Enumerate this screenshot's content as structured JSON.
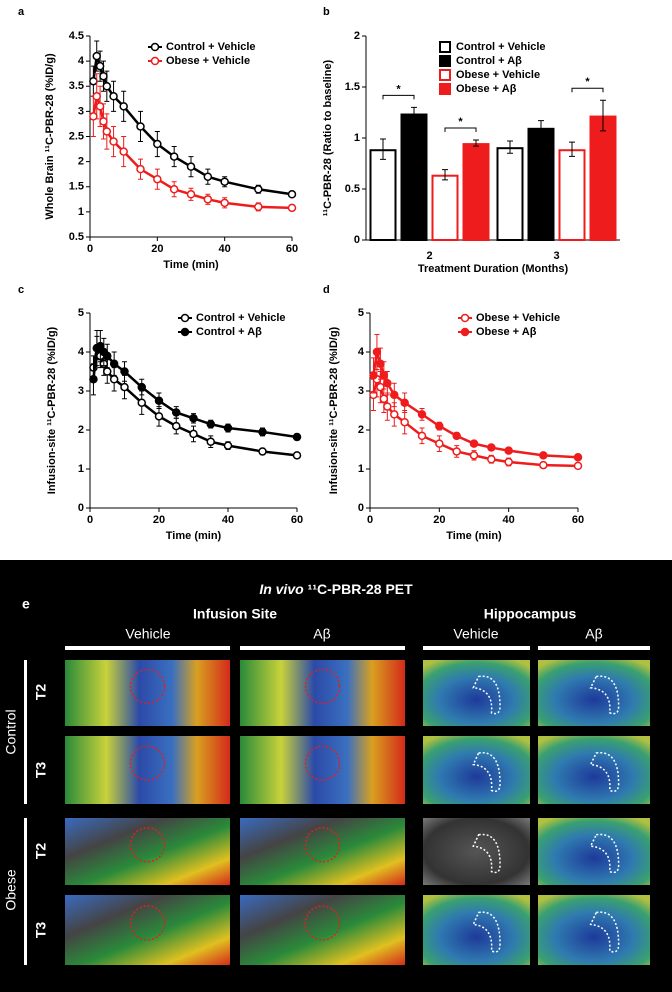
{
  "chart_data": [
    {
      "type": "line",
      "label": "a",
      "ylabel": "Whole Brain ¹¹C-PBR-28 (%ID/g)",
      "xlabel": "Time (min)",
      "xlim": [
        0,
        60
      ],
      "xticks": [
        0,
        20,
        40,
        60
      ],
      "ylim": [
        0.5,
        4.5
      ],
      "yticks": [
        0.5,
        1,
        1.5,
        2,
        2.5,
        3,
        3.5,
        4,
        4.5
      ],
      "x": [
        1,
        2,
        3,
        4,
        5,
        7,
        10,
        15,
        20,
        25,
        30,
        35,
        40,
        50,
        60
      ],
      "series": [
        {
          "name": "Control + Vehicle",
          "color": "#000000",
          "marker_fill": "#ffffff",
          "values": [
            3.6,
            4.1,
            3.9,
            3.7,
            3.5,
            3.3,
            3.1,
            2.7,
            2.35,
            2.1,
            1.9,
            1.7,
            1.6,
            1.45,
            1.35
          ],
          "errors": [
            0.3,
            0.3,
            0.3,
            0.3,
            0.3,
            0.3,
            0.3,
            0.3,
            0.25,
            0.2,
            0.2,
            0.15,
            0.1,
            0.08,
            0.05
          ]
        },
        {
          "name": "Obese + Vehicle",
          "color": "#ee1c1c",
          "marker_fill": "#ffffff",
          "values": [
            2.9,
            3.3,
            3.1,
            2.8,
            2.6,
            2.4,
            2.2,
            1.85,
            1.65,
            1.45,
            1.35,
            1.25,
            1.18,
            1.1,
            1.08
          ],
          "errors": [
            0.4,
            0.45,
            0.4,
            0.35,
            0.35,
            0.3,
            0.3,
            0.2,
            0.2,
            0.15,
            0.12,
            0.1,
            0.1,
            0.08,
            0.06
          ]
        }
      ]
    },
    {
      "type": "bar",
      "label": "b",
      "ylabel": "¹¹C-PBR-28 (Ratio to baseline)",
      "xlabel": "Treatment Duration (Months)",
      "categories": [
        "2",
        "3"
      ],
      "ylim": [
        0,
        2
      ],
      "yticks": [
        0,
        0.5,
        1,
        1.5,
        2
      ],
      "annotations": [
        "*",
        "*",
        "*"
      ],
      "series": [
        {
          "name": "Control + Vehicle",
          "color": "#000000",
          "fill": "#ffffff",
          "values": [
            0.89,
            0.91
          ],
          "errors": [
            0.1,
            0.06
          ]
        },
        {
          "name": "Control + Aβ",
          "color": "#000000",
          "fill": "#000000",
          "values": [
            1.24,
            1.1
          ],
          "errors": [
            0.06,
            0.07
          ]
        },
        {
          "name": "Obese + Vehicle",
          "color": "#ee1c1c",
          "fill": "#ffffff",
          "values": [
            0.64,
            0.89
          ],
          "errors": [
            0.05,
            0.07
          ]
        },
        {
          "name": "Obese + Aβ",
          "color": "#ee1c1c",
          "fill": "#ee1c1c",
          "values": [
            0.95,
            1.22
          ],
          "errors": [
            0.03,
            0.15
          ]
        }
      ]
    },
    {
      "type": "line",
      "label": "c",
      "ylabel": "Infusion-site ¹¹C-PBR-28 (%ID/g)",
      "xlabel": "Time (min)",
      "xlim": [
        0,
        60
      ],
      "xticks": [
        0,
        20,
        40,
        60
      ],
      "ylim": [
        0,
        5
      ],
      "yticks": [
        0,
        1,
        2,
        3,
        4,
        5
      ],
      "x": [
        1,
        2,
        3,
        4,
        5,
        7,
        10,
        15,
        20,
        25,
        30,
        35,
        40,
        50,
        60
      ],
      "series": [
        {
          "name": "Control + Vehicle",
          "color": "#000000",
          "marker_fill": "#ffffff",
          "values": [
            3.6,
            4.1,
            3.9,
            3.7,
            3.5,
            3.3,
            3.1,
            2.7,
            2.35,
            2.1,
            1.9,
            1.7,
            1.6,
            1.45,
            1.35
          ],
          "errors": [
            0.3,
            0.3,
            0.3,
            0.3,
            0.3,
            0.3,
            0.3,
            0.3,
            0.25,
            0.2,
            0.2,
            0.15,
            0.1,
            0.08,
            0.05
          ]
        },
        {
          "name": "Control + Aβ",
          "color": "#000000",
          "marker_fill": "#000000",
          "values": [
            3.3,
            4.1,
            4.15,
            4.0,
            3.9,
            3.7,
            3.5,
            3.1,
            2.75,
            2.45,
            2.3,
            2.15,
            2.05,
            1.95,
            1.82
          ],
          "errors": [
            0.4,
            0.45,
            0.4,
            0.35,
            0.3,
            0.3,
            0.25,
            0.2,
            0.2,
            0.15,
            0.12,
            0.1,
            0.1,
            0.1,
            0.08
          ]
        }
      ]
    },
    {
      "type": "line",
      "label": "d",
      "ylabel": "Infusion-site ¹¹C-PBR-28 (%ID/g)",
      "xlabel": "Time (min)",
      "xlim": [
        0,
        60
      ],
      "xticks": [
        0,
        20,
        40,
        60
      ],
      "ylim": [
        0,
        5
      ],
      "yticks": [
        0,
        1,
        2,
        3,
        4,
        5
      ],
      "x": [
        1,
        2,
        3,
        4,
        5,
        7,
        10,
        15,
        20,
        25,
        30,
        35,
        40,
        50,
        60
      ],
      "series": [
        {
          "name": "Obese + Vehicle",
          "color": "#ee1c1c",
          "marker_fill": "#ffffff",
          "values": [
            2.9,
            3.3,
            3.1,
            2.8,
            2.6,
            2.4,
            2.2,
            1.85,
            1.65,
            1.45,
            1.35,
            1.25,
            1.18,
            1.1,
            1.08
          ],
          "errors": [
            0.4,
            0.45,
            0.4,
            0.35,
            0.35,
            0.3,
            0.3,
            0.2,
            0.2,
            0.15,
            0.12,
            0.1,
            0.1,
            0.08,
            0.06
          ]
        },
        {
          "name": "Obese + Aβ",
          "color": "#ee1c1c",
          "marker_fill": "#ee1c1c",
          "values": [
            3.4,
            4.0,
            3.7,
            3.4,
            3.2,
            2.9,
            2.7,
            2.4,
            2.1,
            1.85,
            1.65,
            1.55,
            1.47,
            1.35,
            1.3
          ],
          "errors": [
            0.45,
            0.45,
            0.4,
            0.35,
            0.3,
            0.3,
            0.25,
            0.15,
            0.1,
            0.08,
            0.07,
            0.06,
            0.05,
            0.05,
            0.05
          ]
        }
      ]
    }
  ],
  "panel_e": {
    "label": "e",
    "title_italic": "In vivo",
    "title": "¹¹C-PBR-28 PET",
    "sections": [
      "Infusion Site",
      "Hippocampus"
    ],
    "columns": [
      "Vehicle",
      "Aβ",
      "Vehicle",
      "Aβ"
    ],
    "groups": [
      "Control",
      "Obese"
    ],
    "rows": [
      "T2",
      "T3"
    ]
  }
}
